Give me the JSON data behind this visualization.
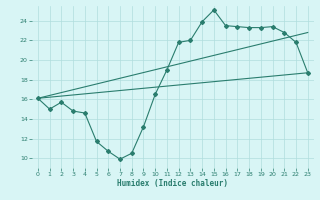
{
  "xlabel": "Humidex (Indice chaleur)",
  "bg_color": "#d8f5f5",
  "line_color": "#2a7d6e",
  "grid_color": "#b0dede",
  "xlim": [
    -0.5,
    23.5
  ],
  "ylim": [
    9,
    25.5
  ],
  "xticks": [
    0,
    1,
    2,
    3,
    4,
    5,
    6,
    7,
    8,
    9,
    10,
    11,
    12,
    13,
    14,
    15,
    16,
    17,
    18,
    19,
    20,
    21,
    22,
    23
  ],
  "yticks": [
    10,
    12,
    14,
    16,
    18,
    20,
    22,
    24
  ],
  "curve1_x": [
    0,
    1,
    2,
    3,
    4,
    5,
    6,
    7,
    8,
    9,
    10,
    11,
    12,
    13,
    14,
    15,
    16,
    17,
    18,
    19,
    20,
    21,
    22,
    23
  ],
  "curve1_y": [
    16.1,
    15.0,
    15.7,
    14.8,
    14.6,
    11.7,
    10.7,
    9.9,
    10.5,
    13.2,
    16.5,
    19.0,
    21.8,
    22.0,
    23.9,
    25.1,
    23.5,
    23.4,
    23.3,
    23.3,
    23.4,
    22.8,
    21.8,
    18.7
  ],
  "line1_x": [
    0,
    23
  ],
  "line1_y": [
    16.1,
    22.8
  ],
  "line2_x": [
    0,
    23
  ],
  "line2_y": [
    16.1,
    18.7
  ]
}
